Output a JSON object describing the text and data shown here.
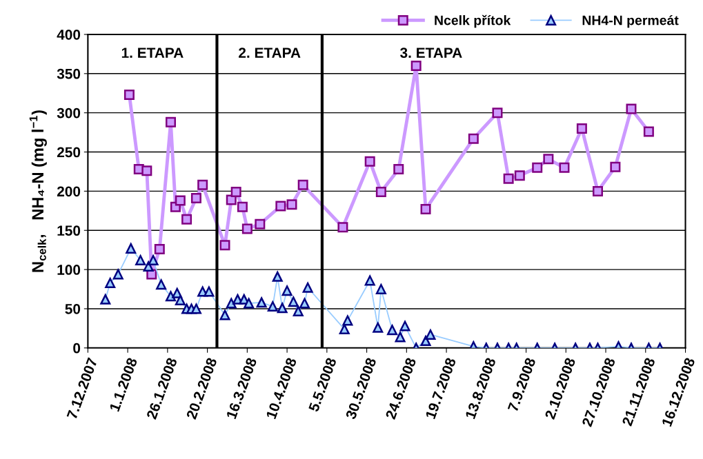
{
  "chart_data": {
    "type": "line",
    "ylabel": "N$_{celk}$,   NH₄-N (mg l$^{−1}$)",
    "xlim": [
      "2007-12-07",
      "2008-12-16"
    ],
    "xticks": [
      {
        "value": "2007-12-07",
        "label": "7.12.2007"
      },
      {
        "value": "2008-01-01",
        "label": "1.1.2008"
      },
      {
        "value": "2008-01-26",
        "label": "26.1.2008"
      },
      {
        "value": "2008-02-20",
        "label": "20.2.2008"
      },
      {
        "value": "2008-03-16",
        "label": "16.3.2008"
      },
      {
        "value": "2008-04-10",
        "label": "10.4.2008"
      },
      {
        "value": "2008-05-05",
        "label": "5.5.2008"
      },
      {
        "value": "2008-05-30",
        "label": "30.5.2008"
      },
      {
        "value": "2008-06-24",
        "label": "24.6.2008"
      },
      {
        "value": "2008-07-19",
        "label": "19.7.2008"
      },
      {
        "value": "2008-08-13",
        "label": "13.8.2008"
      },
      {
        "value": "2008-09-07",
        "label": "7.9.2008"
      },
      {
        "value": "2008-10-02",
        "label": "2.10.2008"
      },
      {
        "value": "2008-10-27",
        "label": "27.10.2008"
      },
      {
        "value": "2008-11-21",
        "label": "21.11.2008"
      },
      {
        "value": "2008-12-16",
        "label": "16.12.2008"
      }
    ],
    "ylim": [
      0,
      400
    ],
    "yticks": [
      0,
      50,
      100,
      150,
      200,
      250,
      300,
      350,
      400
    ],
    "grid": "y",
    "legend": "top right",
    "ref_lines": [
      {
        "axis": "x",
        "value": "2008-02-26",
        "color": "#000000"
      },
      {
        "axis": "x",
        "value": "2008-05-02",
        "color": "#000000"
      }
    ],
    "annotations": [
      "1. ETAPA",
      "2. ETAPA",
      "3. ETAPA"
    ],
    "series": [
      {
        "name": "Ncelk přítok",
        "color": "#cc99ff",
        "marker": "square",
        "x": [
          "2008-01-02",
          "2008-01-08",
          "2008-01-13",
          "2008-01-16",
          "2008-01-21",
          "2008-01-28",
          "2008-01-31",
          "2008-02-03",
          "2008-02-07",
          "2008-02-13",
          "2008-02-17",
          "2008-03-02",
          "2008-03-06",
          "2008-03-09",
          "2008-03-13",
          "2008-03-16",
          "2008-03-24",
          "2008-04-06",
          "2008-04-13",
          "2008-04-20",
          "2008-05-15",
          "2008-06-01",
          "2008-06-08",
          "2008-06-19",
          "2008-06-30",
          "2008-07-06",
          "2008-08-05",
          "2008-08-20",
          "2008-08-27",
          "2008-09-03",
          "2008-09-14",
          "2008-09-21",
          "2008-10-01",
          "2008-10-12",
          "2008-10-22",
          "2008-11-02",
          "2008-11-12",
          "2008-11-23"
        ],
        "values": [
          323,
          228,
          226,
          94,
          126,
          288,
          180,
          188,
          164,
          191,
          208,
          131,
          189,
          199,
          180,
          152,
          158,
          181,
          183,
          208,
          154,
          238,
          199,
          228,
          360,
          177,
          267,
          300,
          216,
          220,
          230,
          241,
          230,
          280,
          200,
          231,
          305,
          276
        ]
      },
      {
        "name": "NH4-N permeát",
        "color": "#99ccff",
        "marker": "triangle",
        "x": [
          "2007-12-18",
          "2007-12-21",
          "2007-12-26",
          "2008-01-03",
          "2008-01-09",
          "2008-01-14",
          "2008-01-17",
          "2008-01-22",
          "2008-01-28",
          "2008-02-01",
          "2008-02-03",
          "2008-02-07",
          "2008-02-10",
          "2008-02-13",
          "2008-02-17",
          "2008-02-21",
          "2008-03-02",
          "2008-03-06",
          "2008-03-10",
          "2008-03-14",
          "2008-03-17",
          "2008-03-25",
          "2008-04-01",
          "2008-04-04",
          "2008-04-07",
          "2008-04-10",
          "2008-04-14",
          "2008-04-17",
          "2008-04-21",
          "2008-04-23",
          "2008-05-16",
          "2008-05-18",
          "2008-06-01",
          "2008-06-06",
          "2008-06-08",
          "2008-06-15",
          "2008-06-20",
          "2008-06-23",
          "2008-06-30",
          "2008-07-06",
          "2008-07-09",
          "2008-08-05",
          "2008-08-13",
          "2008-08-20",
          "2008-08-27",
          "2008-09-01",
          "2008-09-14",
          "2008-09-25",
          "2008-10-08",
          "2008-10-17",
          "2008-10-22",
          "2008-11-04",
          "2008-11-12",
          "2008-11-23",
          "2008-11-30"
        ],
        "values": [
          62,
          83,
          94,
          127,
          112,
          104,
          112,
          81,
          66,
          70,
          61,
          50,
          50,
          50,
          72,
          72,
          42,
          57,
          62,
          62,
          57,
          58,
          53,
          91,
          51,
          73,
          59,
          47,
          57,
          77,
          24,
          35,
          86,
          26,
          75,
          23,
          14,
          28,
          0,
          9,
          17,
          2,
          0,
          0,
          0,
          0,
          0,
          0,
          0,
          0,
          0,
          2,
          0,
          0,
          0
        ]
      }
    ]
  }
}
